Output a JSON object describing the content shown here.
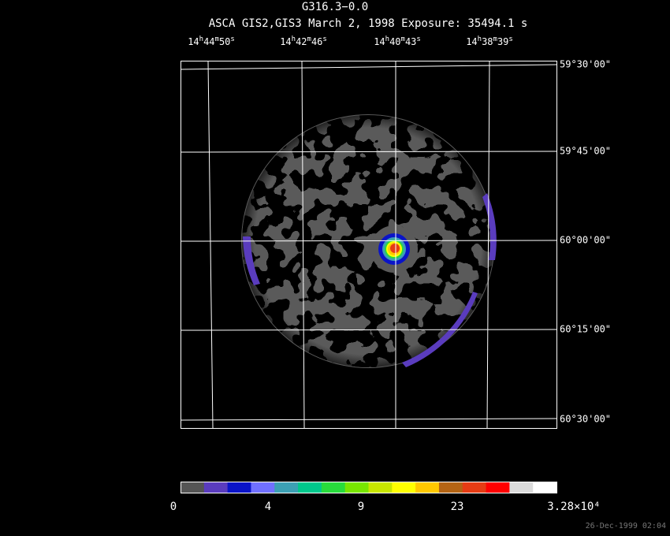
{
  "title": "G316.3−0.0",
  "subtitle": "ASCA GIS2,GIS3 March 2, 1998 Exposure: 35494.1 s",
  "ra_units": [
    "h",
    "m",
    "s"
  ],
  "ra_labels": [
    [
      "14",
      "44",
      "50"
    ],
    [
      "14",
      "42",
      "46"
    ],
    [
      "14",
      "40",
      "43"
    ],
    [
      "14",
      "38",
      "39"
    ]
  ],
  "dec_labels": [
    "59°30'00\"",
    "59°45'00\"",
    "60°00'00\"",
    "60°15'00\"",
    "60°30'00\""
  ],
  "colorbar": {
    "colors": [
      "#555555",
      "#5a3cbe",
      "#0a14c8",
      "#7070ff",
      "#3ca0b4",
      "#00c88c",
      "#28dc3c",
      "#78e600",
      "#c8e600",
      "#ffff00",
      "#ffc800",
      "#b46414",
      "#e63c14",
      "#ff0000",
      "#dcdcdc",
      "#ffffff"
    ],
    "labels": [
      "0",
      "4",
      "9",
      "23",
      "3.28×10⁴"
    ]
  },
  "timestamp": "26-Dec-1999 02:04"
}
